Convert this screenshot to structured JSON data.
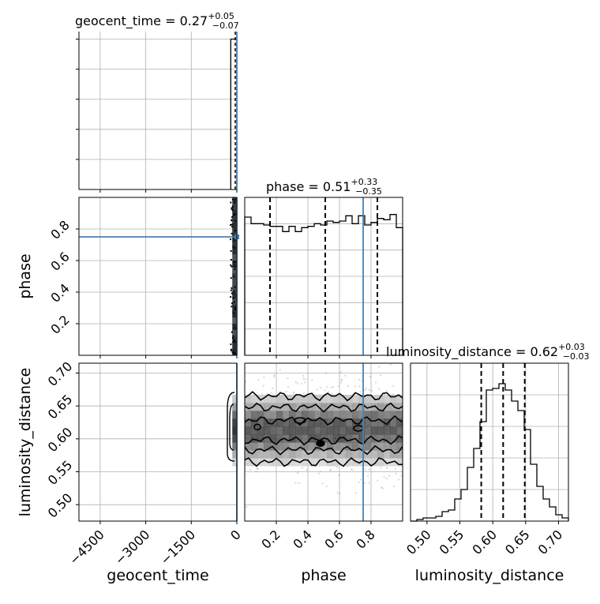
{
  "chart_data": {
    "type": "corner",
    "parameters": [
      "geocent_time",
      "phase",
      "luminosity_distance"
    ],
    "truths": {
      "geocent_time": 0,
      "phase": 0.75
    },
    "colors": {
      "truth": "#4682b4",
      "hist": "#000000",
      "grid": "#b0b0b0"
    },
    "grid": true,
    "panels": {
      "geocent_time_hist": {
        "title": {
          "name": "geocent_time",
          "value": "0.27",
          "plus": "+0.05",
          "minus": "−0.07"
        },
        "xlim": [
          -5200,
          0
        ],
        "ylim": [
          0,
          1.05
        ],
        "step_x": [
          -200,
          0
        ],
        "quantile_lines": [
          0.2,
          0.27,
          0.32
        ]
      },
      "phase_hist": {
        "title": {
          "name": "phase",
          "value": "0.51",
          "plus": "+0.33",
          "minus": "−0.35"
        },
        "xlim": [
          0,
          1
        ],
        "ylim": [
          0,
          1.2
        ],
        "bin_edges": [
          0,
          0.04,
          0.08,
          0.12,
          0.16,
          0.2,
          0.24,
          0.28,
          0.32,
          0.36,
          0.4,
          0.44,
          0.48,
          0.52,
          0.56,
          0.6,
          0.64,
          0.68,
          0.72,
          0.76,
          0.8,
          0.84,
          0.88,
          0.92,
          0.96,
          1.0
        ],
        "counts": [
          1.05,
          1.0,
          1.0,
          0.99,
          0.98,
          0.98,
          0.94,
          0.98,
          0.94,
          0.97,
          0.98,
          1.0,
          0.99,
          1.02,
          1.01,
          1.02,
          1.06,
          1.0,
          1.06,
          0.99,
          1.01,
          1.04,
          1.03,
          1.07,
          0.97
        ],
        "quantile_lines": [
          0.16,
          0.51,
          0.84
        ]
      },
      "luminosity_distance_hist": {
        "title": {
          "name": "luminosity_distance",
          "value": "0.62",
          "plus": "+0.03",
          "minus": "−0.03"
        },
        "xlim": [
          0.475,
          0.715
        ],
        "ylim": [
          0,
          1.0
        ],
        "bin_edges": [
          0.475,
          0.4846,
          0.4942,
          0.5038,
          0.5134,
          0.523,
          0.5326,
          0.5422,
          0.5518,
          0.5614,
          0.571,
          0.5806,
          0.5902,
          0.5998,
          0.6094,
          0.619,
          0.6286,
          0.6382,
          0.6478,
          0.6574,
          0.667,
          0.6766,
          0.6862,
          0.6958,
          0.7054,
          0.715
        ],
        "counts": [
          0.0,
          0.01,
          0.02,
          0.02,
          0.03,
          0.06,
          0.07,
          0.14,
          0.2,
          0.34,
          0.46,
          0.63,
          0.83,
          0.84,
          0.87,
          0.83,
          0.76,
          0.7,
          0.58,
          0.36,
          0.22,
          0.14,
          0.09,
          0.04,
          0.02
        ],
        "quantile_lines": [
          0.5825,
          0.6158,
          0.6486
        ]
      },
      "phase_vs_geocent_time": {
        "xlim": [
          -5200,
          0
        ],
        "ylim": [
          0,
          1
        ],
        "sample_band_x": [
          -150,
          0
        ]
      },
      "luminosity_distance_vs_geocent_time": {
        "xlim": [
          -5200,
          0
        ],
        "ylim": [
          0.475,
          0.715
        ],
        "sample_band_x": [
          -150,
          0
        ]
      },
      "luminosity_distance_vs_phase": {
        "xlim": [
          0,
          1
        ],
        "ylim": [
          0.475,
          0.715
        ],
        "contour_levels_y": [
          0.565,
          0.583,
          0.598,
          0.628,
          0.648,
          0.665
        ],
        "density_center": 0.615
      }
    },
    "ticks": {
      "geocent_time_x": [
        -4500,
        -3000,
        -1500,
        0
      ],
      "geocent_time_x_labels": [
        "−4500",
        "−3000",
        "−1500",
        "0"
      ],
      "phase": [
        0.2,
        0.4,
        0.6,
        0.8
      ],
      "phase_labels": [
        "0.2",
        "0.4",
        "0.6",
        "0.8"
      ],
      "luminosity_distance": [
        0.5,
        0.55,
        0.6,
        0.65,
        0.7
      ],
      "luminosity_distance_labels": [
        "0.50",
        "0.55",
        "0.60",
        "0.65",
        "0.70"
      ],
      "geocent_time_hist_y": [
        0.2,
        0.4,
        0.6,
        0.8,
        1.0
      ]
    },
    "axis_labels": {
      "x": [
        "geocent_time",
        "phase",
        "luminosity_distance"
      ],
      "y": [
        "phase",
        "luminosity_distance"
      ]
    }
  }
}
